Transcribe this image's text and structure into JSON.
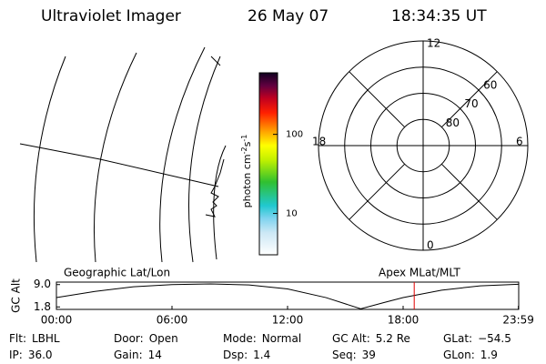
{
  "header": {
    "title": "Ultraviolet Imager",
    "date": "26 May 07",
    "time": "18:34:35 UT"
  },
  "colorbar": {
    "label": [
      "photon cm",
      "-2",
      "s",
      "-1"
    ],
    "scale": "log",
    "lim": [
      3,
      600
    ],
    "ticks": [
      10,
      100
    ]
  },
  "polar": {
    "label": "Apex MLat/MLT",
    "lat_lim": [
      90,
      50
    ],
    "lat_rings": [
      80,
      70,
      60
    ],
    "mlt_ticks": [
      12,
      6,
      0,
      18
    ]
  },
  "map": {
    "label": "Geographic Lat/Lon"
  },
  "altitude_plot": {
    "ylabel": "GC Alt",
    "ylim": [
      1.0,
      9.8
    ],
    "yticks": [
      1.8,
      {
        "value": 9,
        "label": "9.0"
      }
    ],
    "xlim": [
      0,
      24
    ],
    "xticks": [
      {
        "value": 0,
        "label": "00:00"
      },
      {
        "value": 6,
        "label": "06:00"
      },
      {
        "value": 12,
        "label": "12:00"
      },
      {
        "value": 18,
        "label": "18:00"
      },
      {
        "value": 23.983,
        "label": "23:59"
      }
    ],
    "hours": [
      0,
      2,
      4,
      6,
      8,
      10,
      12,
      14,
      15.8,
      17,
      18,
      20,
      22,
      23.98
    ],
    "values": [
      4.8,
      6.8,
      8.3,
      9.0,
      9.2,
      8.9,
      7.6,
      4.8,
      1.2,
      3.2,
      4.8,
      7.2,
      8.6,
      9.1
    ],
    "current_time": 18.576,
    "marker_color": "#e00000"
  },
  "status": [
    [
      "Flt:",
      "LBHL"
    ],
    [
      "Door:",
      "Open"
    ],
    [
      "Mode:",
      "Normal"
    ],
    [
      "GC Alt:",
      "5.2 Re"
    ],
    [
      "GLat:",
      "−54.5"
    ],
    [
      "IP:",
      "36.0"
    ],
    [
      "Gain:",
      "14"
    ],
    [
      "Dsp:",
      "1.4"
    ],
    [
      "Seq:",
      "39"
    ],
    [
      "GLon:",
      "1.9"
    ]
  ]
}
